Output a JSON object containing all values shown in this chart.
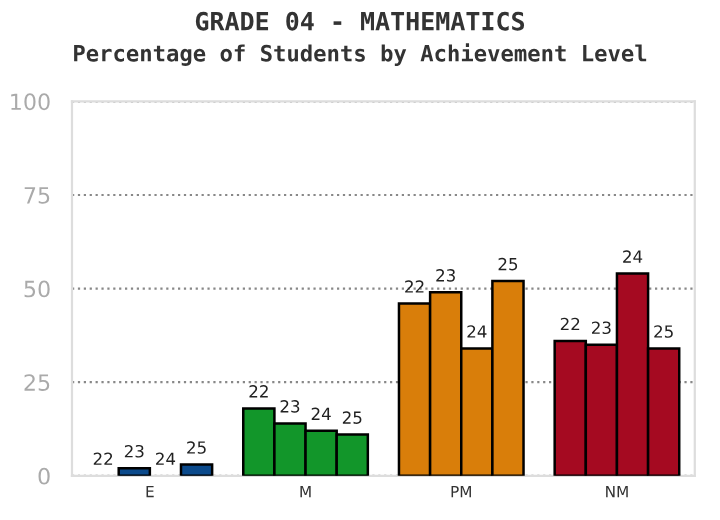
{
  "chart_data": {
    "type": "bar",
    "title": "GRADE 04 - MATHEMATICS",
    "subtitle": "Percentage of Students by Achievement Level",
    "categories": [
      "E",
      "M",
      "PM",
      "NM"
    ],
    "series": [
      {
        "name": "22",
        "colors": [
          "#0b4a8c",
          "#12962a",
          "#d97e0a",
          "#a50a21"
        ],
        "values": [
          0,
          18,
          46,
          36
        ]
      },
      {
        "name": "23",
        "colors": [
          "#0b4a8c",
          "#12962a",
          "#d97e0a",
          "#a50a21"
        ],
        "values": [
          2,
          14,
          49,
          35
        ]
      },
      {
        "name": "24",
        "colors": [
          "#0b4a8c",
          "#12962a",
          "#d97e0a",
          "#a50a21"
        ],
        "values": [
          0,
          12,
          34,
          54
        ]
      },
      {
        "name": "25",
        "colors": [
          "#0b4a8c",
          "#12962a",
          "#d97e0a",
          "#a50a21"
        ],
        "values": [
          3,
          11,
          52,
          34
        ]
      }
    ],
    "ylim": [
      0,
      100
    ],
    "yticks": [
      0,
      25,
      50,
      75,
      100
    ],
    "grid": "y",
    "legend": false
  }
}
